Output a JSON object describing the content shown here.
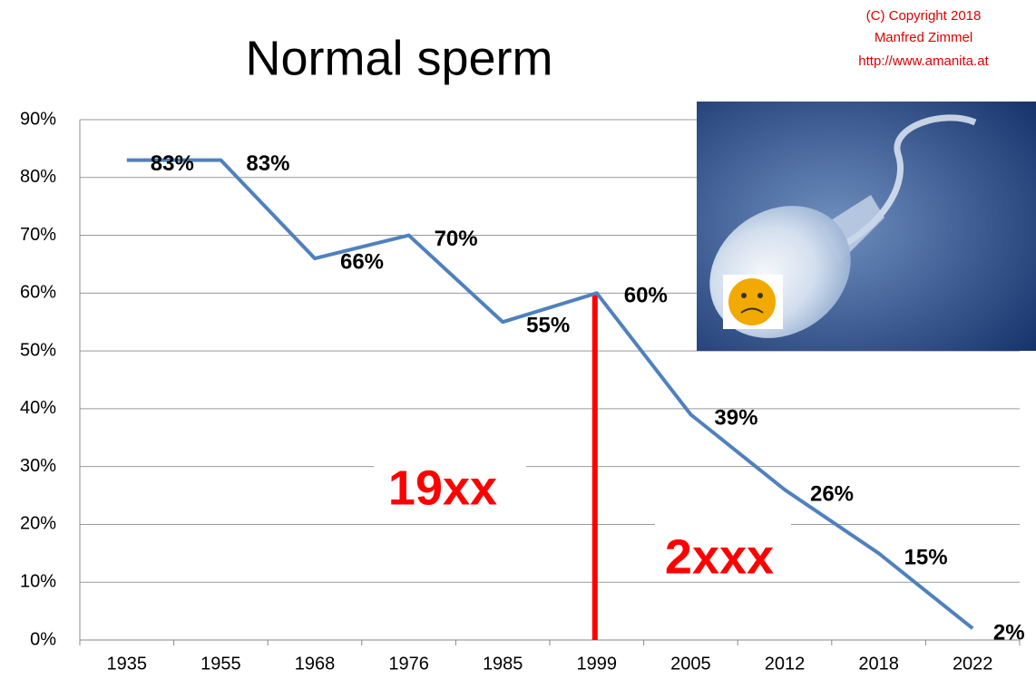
{
  "chart_data": {
    "type": "line",
    "title": "Normal sperm",
    "copyright": [
      "(C) Copyright 2018",
      "Manfred Zimmel",
      "http://www.amanita.at"
    ],
    "annotations": [
      "19xx",
      "2xxx"
    ],
    "categories": [
      "1935",
      "1955",
      "1968",
      "1976",
      "1985",
      "1999",
      "2005",
      "2012",
      "2018",
      "2022"
    ],
    "values": [
      83,
      83,
      66,
      70,
      55,
      60,
      39,
      26,
      15,
      2
    ],
    "value_labels": [
      "83%",
      "83%",
      "66%",
      "70%",
      "55%",
      "60%",
      "39%",
      "26%",
      "15%",
      "2%"
    ],
    "color": "#4f81bd",
    "ylim": [
      0,
      90
    ],
    "yticks": [
      {
        "value": 0,
        "label": "0%"
      },
      {
        "value": 10,
        "label": "10%"
      },
      {
        "value": 20,
        "label": "20%"
      },
      {
        "value": 30,
        "label": "30%"
      },
      {
        "value": 40,
        "label": "40%"
      },
      {
        "value": 50,
        "label": "50%"
      },
      {
        "value": 60,
        "label": "60%"
      },
      {
        "value": 70,
        "label": "70%"
      },
      {
        "value": 80,
        "label": "80%"
      },
      {
        "value": 90,
        "label": "90%"
      }
    ],
    "grid": true
  }
}
